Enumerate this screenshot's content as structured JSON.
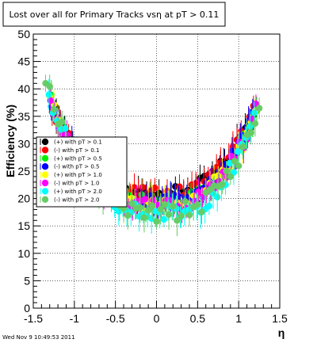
{
  "footer": "Wed Nov  9 10:49:53 2011",
  "chart_data": {
    "type": "scatter",
    "title": "Lost over all for Primary Tracks vsη at pT > 0.11",
    "xlabel": "η",
    "ylabel": "Efficiency (%)",
    "xlim": [
      -1.5,
      1.5
    ],
    "ylim": [
      0,
      50
    ],
    "x_ticks": [
      "-1.5",
      "-1",
      "-0.5",
      "0",
      "0.5",
      "1",
      "1.5"
    ],
    "y_ticks": [
      "0",
      "5",
      "10",
      "15",
      "20",
      "25",
      "30",
      "35",
      "40",
      "45",
      "50"
    ],
    "grid": true,
    "legend_position": "center-left",
    "series": [
      {
        "name": "(+) with pT > 0.1",
        "color": "#000000",
        "y0": 21.0,
        "a": 8.6,
        "b": 9.6,
        "p": 2.7,
        "s": 1.05,
        "nx": -1.27,
        "px": 1.2
      },
      {
        "name": "(-) with pT > 0.1",
        "color": "#ff0000",
        "y0": 20.7,
        "a": 8.4,
        "b": 9.8,
        "p": 2.7,
        "s": 1.3,
        "nx": -1.27,
        "px": 1.21
      },
      {
        "name": "(+) with pT > 0.5",
        "color": "#00ee00",
        "y0": 19.3,
        "a": 9.4,
        "b": 10.0,
        "p": 2.7,
        "s": 1.35,
        "nx": -1.28,
        "px": 1.22
      },
      {
        "name": "(-) with pT > 0.5",
        "color": "#0000ff",
        "y0": 19.2,
        "a": 9.0,
        "b": 10.2,
        "p": 2.7,
        "s": 1.45,
        "nx": -1.28,
        "px": 1.21
      },
      {
        "name": "(+) with pT > 1.0",
        "color": "#ffff00",
        "y0": 18.6,
        "a": 9.6,
        "b": 10.2,
        "p": 2.7,
        "s": 1.5,
        "nx": -1.3,
        "px": 1.22
      },
      {
        "name": "(-) with pT > 1.0",
        "color": "#ff00ff",
        "y0": 18.4,
        "a": 9.4,
        "b": 10.4,
        "p": 2.7,
        "s": 1.5,
        "nx": -1.29,
        "px": 1.23
      },
      {
        "name": "(+) with pT > 2.0",
        "color": "#00ffff",
        "y0": 17.2,
        "a": 10.6,
        "b": 10.4,
        "p": 2.7,
        "s": 1.8,
        "nx": -1.31,
        "px": 1.23
      },
      {
        "name": "(-) with pT > 2.0",
        "color": "#66cc66",
        "y0": 17.2,
        "a": 10.6,
        "b": 10.4,
        "p": 2.7,
        "s": 1.8,
        "nx": -1.35,
        "px": 1.27
      }
    ]
  }
}
